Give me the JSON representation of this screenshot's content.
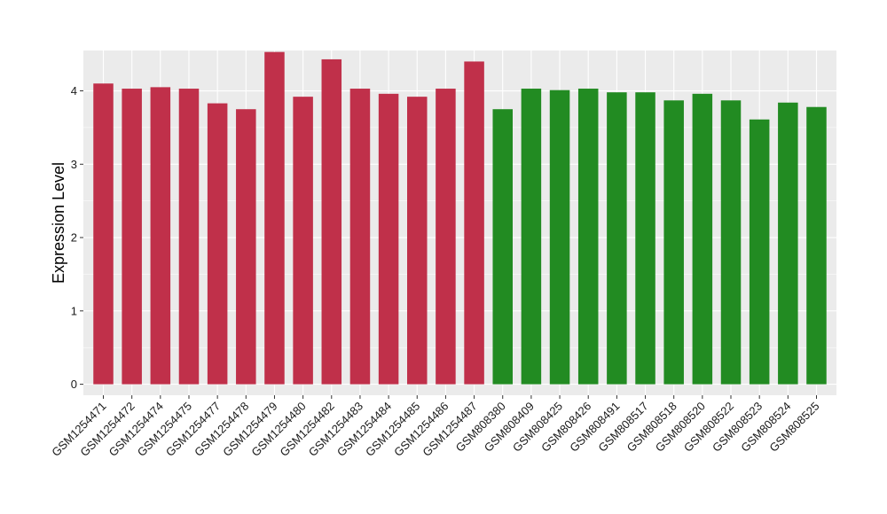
{
  "chart_data": {
    "type": "bar",
    "title": "",
    "xlabel": "",
    "ylabel": "Expression Level",
    "ylim": [
      -0.15,
      4.55
    ],
    "yticks": [
      0,
      1,
      2,
      3,
      4
    ],
    "grid": true,
    "legend": "none",
    "background": "#ebebeb",
    "gridline_color": "#ffffff",
    "categories": [
      "GSM1254471",
      "GSM1254472",
      "GSM1254474",
      "GSM1254475",
      "GSM1254477",
      "GSM1254478",
      "GSM1254479",
      "GSM1254480",
      "GSM1254482",
      "GSM1254483",
      "GSM1254484",
      "GSM1254485",
      "GSM1254486",
      "GSM1254487",
      "GSM808380",
      "GSM808409",
      "GSM808425",
      "GSM808426",
      "GSM808491",
      "GSM808517",
      "GSM808518",
      "GSM808520",
      "GSM808522",
      "GSM808523",
      "GSM808524",
      "GSM808525"
    ],
    "values": [
      4.1,
      4.03,
      4.05,
      4.03,
      3.83,
      3.75,
      4.53,
      3.92,
      4.43,
      4.03,
      3.96,
      3.92,
      4.03,
      4.4,
      3.75,
      4.03,
      4.01,
      4.03,
      3.98,
      3.98,
      3.87,
      3.96,
      3.87,
      3.61,
      3.84,
      3.78
    ],
    "bar_colors": [
      "#c0304a",
      "#c0304a",
      "#c0304a",
      "#c0304a",
      "#c0304a",
      "#c0304a",
      "#c0304a",
      "#c0304a",
      "#c0304a",
      "#c0304a",
      "#c0304a",
      "#c0304a",
      "#c0304a",
      "#c0304a",
      "#228b22",
      "#228b22",
      "#228b22",
      "#228b22",
      "#228b22",
      "#228b22",
      "#228b22",
      "#228b22",
      "#228b22",
      "#228b22",
      "#228b22",
      "#228b22"
    ]
  }
}
